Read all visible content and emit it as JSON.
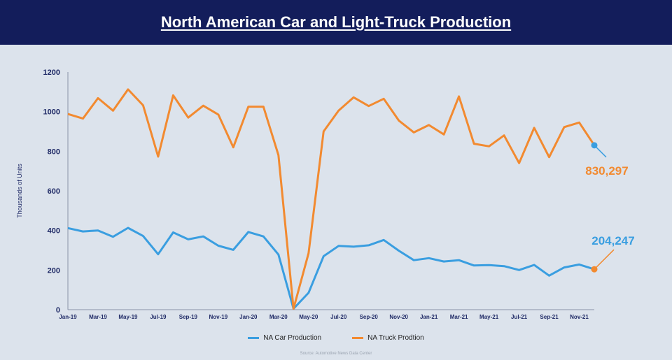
{
  "header": {
    "title": "North American Car and Light-Truck Production"
  },
  "colors": {
    "car": "#3a9ee0",
    "truck": "#f28a30",
    "axis": "#1f2a66",
    "title_bg": "#131d5b"
  },
  "chart_data": {
    "type": "line",
    "title": "North American Car and Light-Truck Production",
    "ylabel": "Thousands of Units",
    "xlabel": "",
    "ylim": [
      0,
      1200
    ],
    "y_ticks": [
      0,
      200,
      400,
      600,
      800,
      1000,
      1200
    ],
    "grid": false,
    "legend_position": "bottom",
    "x": [
      "Jan-19",
      "Feb-19",
      "Mar-19",
      "Apr-19",
      "May-19",
      "Jun-19",
      "Jul-19",
      "Aug-19",
      "Sep-19",
      "Oct-19",
      "Nov-19",
      "Dec-19",
      "Jan-20",
      "Feb-20",
      "Mar-20",
      "Apr-20",
      "May-20",
      "Jun-20",
      "Jul-20",
      "Aug-20",
      "Sep-20",
      "Oct-20",
      "Nov-20",
      "Dec-20",
      "Jan-21",
      "Feb-21",
      "Mar-21",
      "Apr-21",
      "May-21",
      "Jun-21",
      "Jul-21",
      "Aug-21",
      "Sep-21",
      "Oct-21",
      "Nov-21",
      "Dec-21"
    ],
    "tick_labels": [
      "Jan-19",
      "Mar-19",
      "May-19",
      "Jul-19",
      "Sep-19",
      "Nov-19",
      "Jan-20",
      "Mar-20",
      "May-20",
      "Jul-20",
      "Sep-20",
      "Nov-20",
      "Jan-21",
      "Mar-21",
      "May-21",
      "Jul-21",
      "Sep-21",
      "Nov-21"
    ],
    "series": [
      {
        "name": "NA Car Production",
        "values": [
          412,
          395,
          400,
          368,
          413,
          372,
          280,
          390,
          355,
          370,
          323,
          302,
          392,
          370,
          278,
          5,
          85,
          270,
          322,
          318,
          325,
          352,
          298,
          250,
          260,
          243,
          250,
          223,
          225,
          220,
          200,
          226,
          172,
          213,
          228,
          204
        ]
      },
      {
        "name": "NA Truck Prodtion",
        "values": [
          988,
          965,
          1068,
          1005,
          1112,
          1032,
          773,
          1082,
          970,
          1030,
          985,
          820,
          1025,
          1025,
          780,
          5,
          285,
          900,
          1005,
          1072,
          1028,
          1065,
          955,
          895,
          932,
          885,
          1077,
          838,
          825,
          880,
          740,
          918,
          770,
          922,
          945,
          830
        ]
      }
    ],
    "annotations": [
      {
        "text": "830,297",
        "series": "NA Truck Prodtion",
        "x": "Dec-21",
        "y": 830
      },
      {
        "text": "204,247",
        "series": "NA Car Production",
        "x": "Dec-21",
        "y": 204
      }
    ]
  },
  "source": "Source: Automotive News Data Center"
}
